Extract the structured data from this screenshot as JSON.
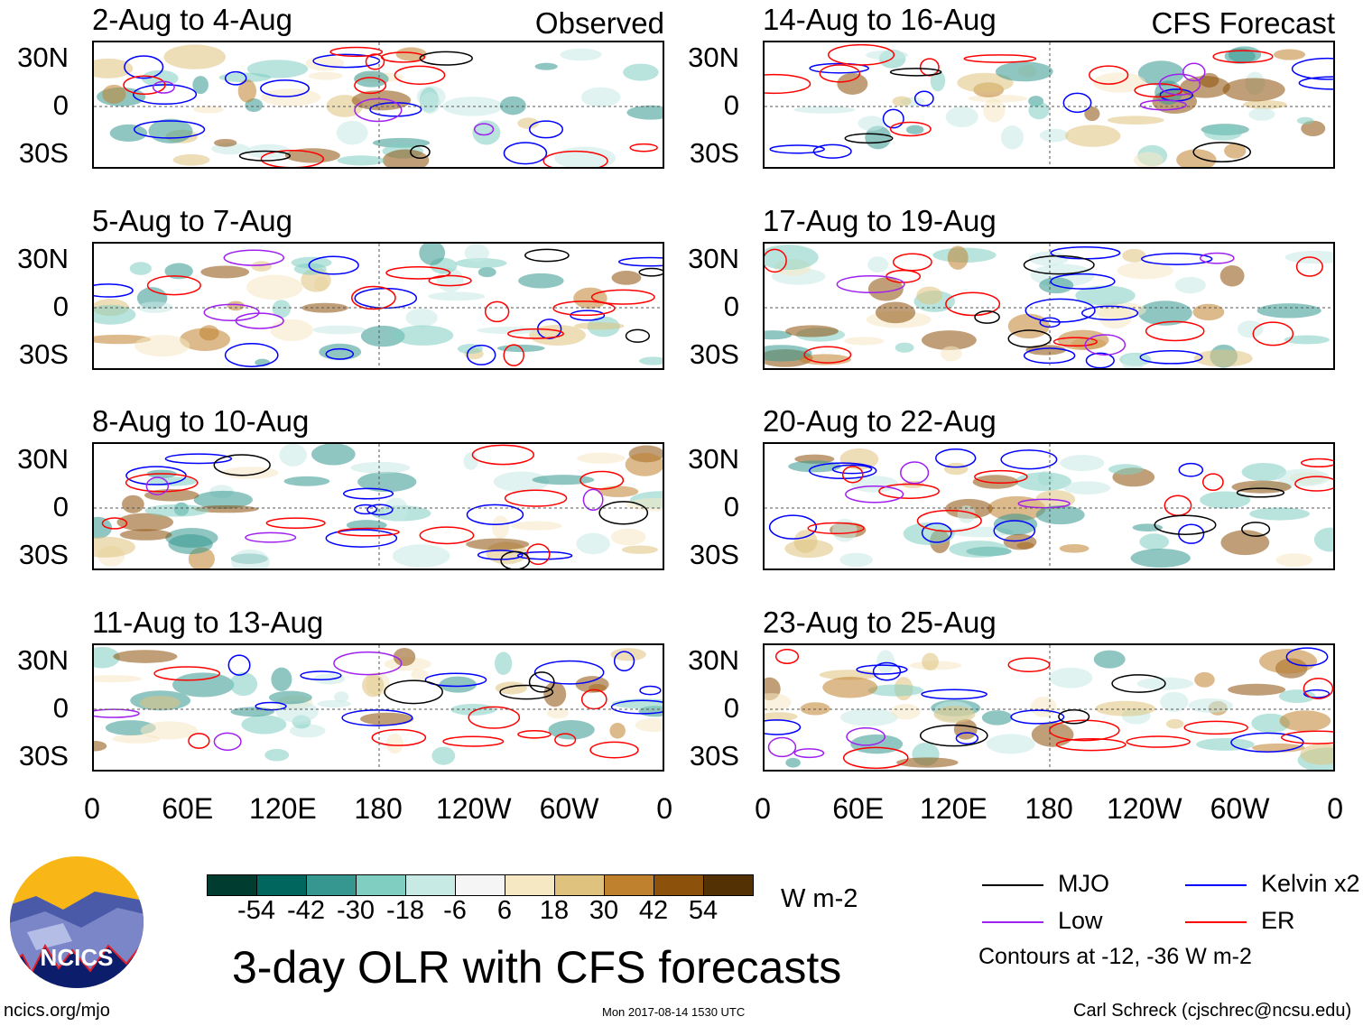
{
  "labels": {
    "observed": "Observed",
    "forecast": "CFS Forecast"
  },
  "panels": [
    {
      "title": "2-Aug to 4-Aug",
      "column": "observed"
    },
    {
      "title": "5-Aug to 7-Aug",
      "column": "observed"
    },
    {
      "title": "8-Aug to 10-Aug",
      "column": "observed"
    },
    {
      "title": "11-Aug to 13-Aug",
      "column": "observed"
    },
    {
      "title": "14-Aug to 16-Aug",
      "column": "forecast"
    },
    {
      "title": "17-Aug to 19-Aug",
      "column": "forecast"
    },
    {
      "title": "20-Aug to 22-Aug",
      "column": "forecast"
    },
    {
      "title": "23-Aug to 25-Aug",
      "column": "forecast"
    }
  ],
  "lat_labels": [
    "30N",
    "0",
    "30S"
  ],
  "lon_labels": [
    "0",
    "60E",
    "120E",
    "180",
    "120W",
    "60W",
    "0"
  ],
  "colorbar": {
    "colors": [
      "#003c30",
      "#01665e",
      "#35978f",
      "#80cdc1",
      "#c7eae5",
      "#f5f5f5",
      "#f6e8c3",
      "#dfc27d",
      "#bf812d",
      "#8c510a",
      "#543005"
    ],
    "ticks": [
      "-54",
      "-42",
      "-30",
      "-18",
      "-6",
      "6",
      "18",
      "30",
      "42",
      "54"
    ],
    "units": "W m-2"
  },
  "legend": [
    {
      "label": "MJO",
      "color": "#000000"
    },
    {
      "label": "Kelvin x2",
      "color": "#0000ff"
    },
    {
      "label": "Low",
      "color": "#a020f0"
    },
    {
      "label": "ER",
      "color": "#ff0000"
    }
  ],
  "contours_note": "Contours at -12, -36 W m-2",
  "title": "3-day OLR with CFS forecasts",
  "logo_text": "NCICS",
  "footer": {
    "left": "ncics.org/mjo",
    "center": "Mon 2017-08-14 1530 UTC",
    "right": "Carl Schreck (cjschrec@ncsu.edu)"
  }
}
